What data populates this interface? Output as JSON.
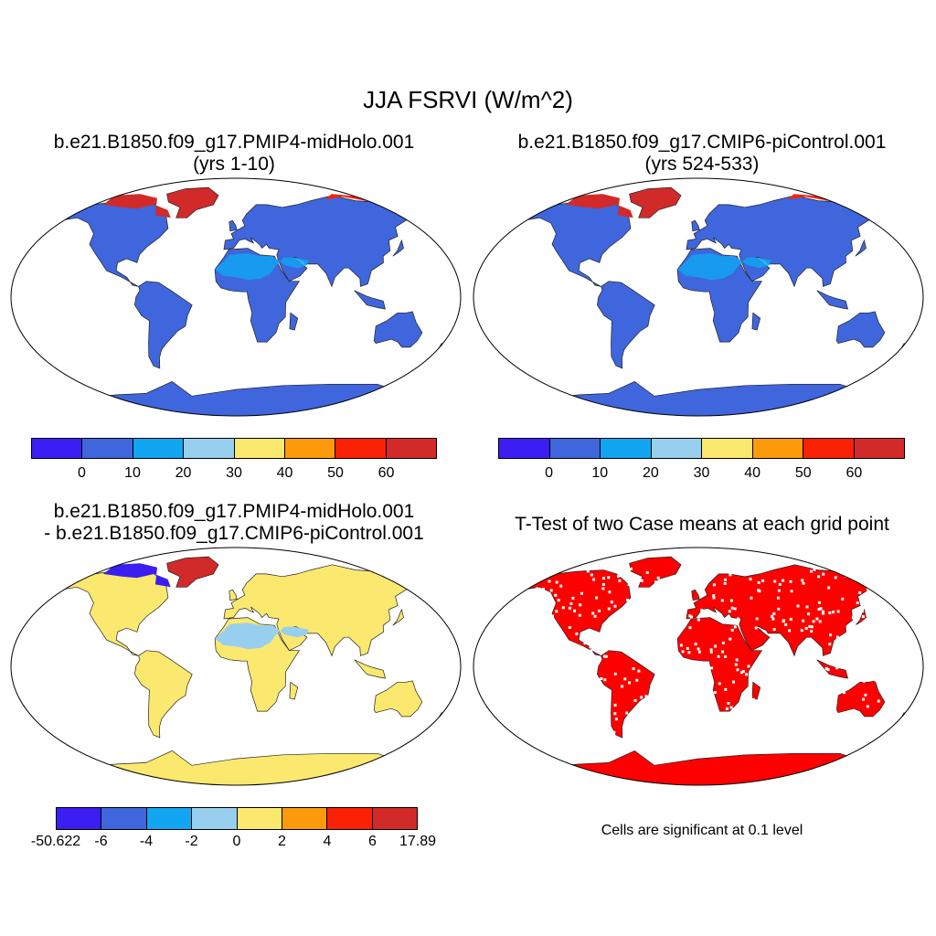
{
  "title": "JJA FSRVI (W/m^2)",
  "panels": [
    {
      "line1": "b.e21.B1850.f09_g17.PMIP4-midHolo.001",
      "line2": "(yrs 1-10)"
    },
    {
      "line1": "b.e21.B1850.f09_g17.CMIP6-piControl.001",
      "line2": "(yrs 524-533)"
    },
    {
      "line1": "b.e21.B1850.f09_g17.PMIP4-midHolo.001",
      "line2": "- b.e21.B1850.f09_g17.CMIP6-piControl.001"
    },
    {
      "line1": "T-Test of two Case means at each grid point"
    }
  ],
  "colorbars": {
    "absolute": {
      "colors": [
        "#3b1ef2",
        "#3f66dc",
        "#12a5f2",
        "#99cfee",
        "#fbe86e",
        "#fc9a0b",
        "#fb2105",
        "#d12a29"
      ],
      "labels": [
        "0",
        "10",
        "20",
        "30",
        "40",
        "50",
        "60"
      ]
    },
    "difference": {
      "colors": [
        "#3b1ef2",
        "#3f66dc",
        "#12a5f2",
        "#99cfee",
        "#fbe86e",
        "#fc9a0b",
        "#fb2105",
        "#d12a29"
      ],
      "labels": [
        "-50.622",
        "-6",
        "-4",
        "-2",
        "0",
        "2",
        "4",
        "6",
        "17.89"
      ]
    }
  },
  "significance_note": "Cells are significant at 0.1 level",
  "map_colors": {
    "abs_land": "#3f66dc",
    "abs_desert": "#12a5f2",
    "abs_arctic": "#d12a29",
    "abs_arctic_edge": "#fb2105",
    "diff_land": "#fbe86e",
    "diff_desert": "#99cfee",
    "diff_arctic": "#3b1ef2",
    "diff_greenland": "#d12a29",
    "ttest_land": "#ff0000"
  }
}
